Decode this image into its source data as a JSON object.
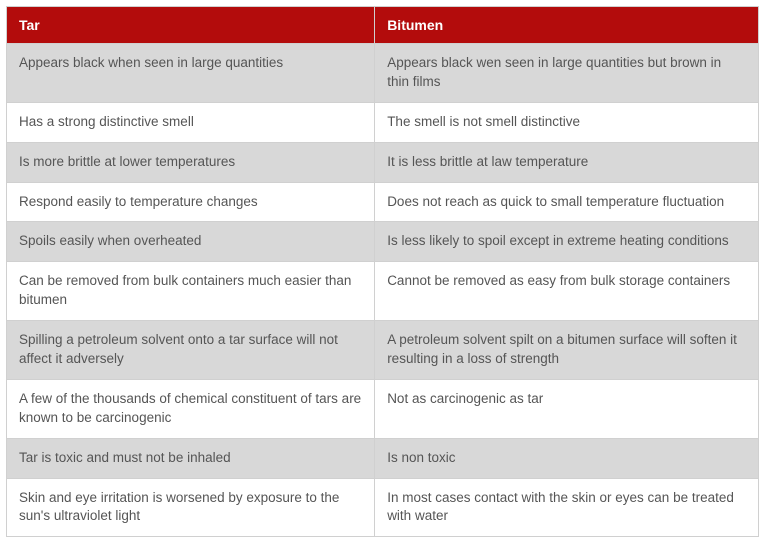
{
  "table": {
    "header_bg": "#b30c0c",
    "header_fg": "#ffffff",
    "odd_row_bg": "#d8d8d8",
    "even_row_bg": "#ffffff",
    "text_color": "#555555",
    "border_color": "#d0d0d0",
    "columns": [
      "Tar",
      "Bitumen"
    ],
    "rows": [
      [
        "Appears black when seen in large quantities",
        "Appears black wen seen in large quantities but brown in thin films"
      ],
      [
        "Has a strong distinctive smell",
        "The smell is not smell distinctive"
      ],
      [
        "Is more brittle at lower temperatures",
        "It is less brittle at law temperature"
      ],
      [
        "Respond easily to temperature changes",
        "Does not reach as quick to small temperature fluctuation"
      ],
      [
        "Spoils easily when overheated",
        "Is less likely to spoil except in extreme heating conditions"
      ],
      [
        "Can be removed from bulk containers much easier than bitumen",
        "Cannot be removed as easy from bulk storage containers"
      ],
      [
        "Spilling a petroleum solvent onto a tar surface will not affect it adversely",
        "A petroleum solvent spilt on a bitumen surface will soften it resulting in a loss of strength"
      ],
      [
        "A few of the thousands of chemical constituent of tars are known to be carcinogenic",
        "Not as carcinogenic as tar"
      ],
      [
        "Tar is toxic and must not be inhaled",
        "Is non toxic"
      ],
      [
        "Skin and eye irritation is worsened by exposure to the sun's ultraviolet light",
        "In most cases contact with the skin or eyes can be treated with water"
      ]
    ]
  }
}
